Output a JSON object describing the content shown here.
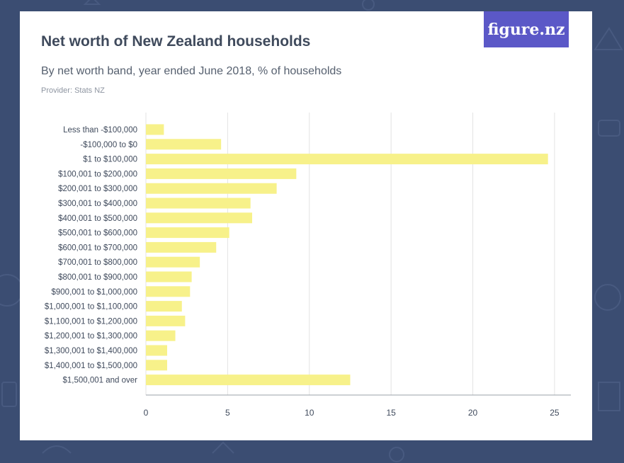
{
  "logo": {
    "text": "figure.nz"
  },
  "chart_data": {
    "type": "bar",
    "orientation": "horizontal",
    "title": "Net worth of New Zealand households",
    "subtitle": "By net worth band, year ended June 2018, % of households",
    "provider": "Provider: Stats NZ",
    "categories": [
      "Less than -$100,000",
      "-$100,000 to $0",
      "$1 to $100,000",
      "$100,001 to $200,000",
      "$200,001 to $300,000",
      "$300,001 to $400,000",
      "$400,001 to $500,000",
      "$500,001 to $600,000",
      "$600,001 to $700,000",
      "$700,001 to $800,000",
      "$800,001 to $900,000",
      "$900,001 to $1,000,000",
      "$1,000,001 to $1,100,000",
      "$1,100,001 to $1,200,000",
      "$1,200,001 to $1,300,000",
      "$1,300,001 to $1,400,000",
      "$1,400,001 to $1,500,000",
      "$1,500,001 and over"
    ],
    "values": [
      1.1,
      4.6,
      24.6,
      9.2,
      8.0,
      6.4,
      6.5,
      5.1,
      4.3,
      3.3,
      2.8,
      2.7,
      2.2,
      2.4,
      1.8,
      1.3,
      1.3,
      12.5
    ],
    "xlim": [
      0,
      26
    ],
    "xticks": [
      0,
      5,
      10,
      15,
      20,
      25
    ],
    "grid": true,
    "bar_color": "#f7f18a",
    "grid_color": "#e3e3e3"
  }
}
